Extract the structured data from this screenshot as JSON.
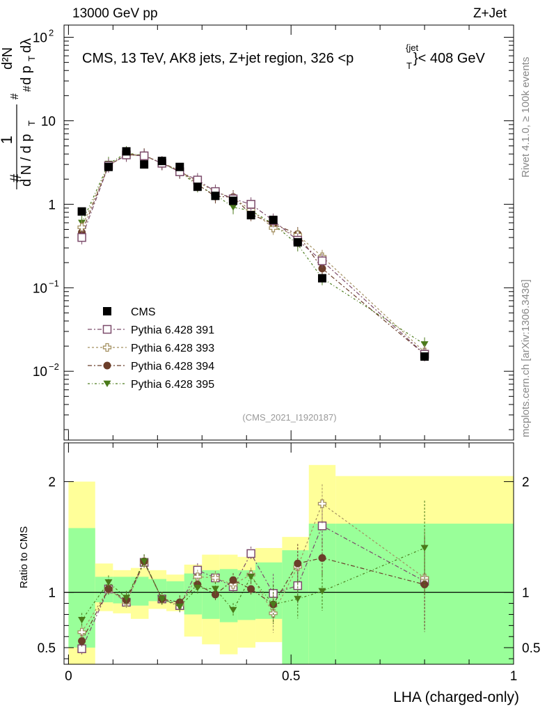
{
  "header": {
    "left": "13000 GeV pp",
    "right": "Z+Jet"
  },
  "side_labels": {
    "rivet": "Rivet 4.1.0, ≥ 100k events",
    "mcplots": "mcplots.cern.ch [arXiv:1306.3436]"
  },
  "title_parts": {
    "main": "CMS, 13 TeV, AK8 jets, Z+jet region, 326 <p",
    "sup": "{jet",
    "sub": "T",
    "tail": "}< 408 GeV"
  },
  "analysis_id": "(CMS_2021_I1920187)",
  "ylabel_top": {
    "hash_left": "#",
    "one": "1",
    "dn": "d N / d p",
    "t": "T",
    "hash_mid": "#",
    "dpt": "d p",
    "t2": "T",
    "dl": "dλ",
    "hash_right": "#",
    "d2n": "d²N"
  },
  "ylabel_bottom": "Ratio to CMS",
  "xlabel": "LHA (charged-only)",
  "colors": {
    "cms": "#000000",
    "p391": "#7b4a6a",
    "p393": "#a39060",
    "p394": "#6b3e2a",
    "p395": "#4a7a1a",
    "band_green": "#99ff99",
    "band_yellow": "#ffff99"
  },
  "chart_data": [
    {
      "type": "scatter",
      "yscale": "log",
      "ylim": [
        0.0015,
        140
      ],
      "xlim": [
        -0.01,
        1.0
      ],
      "yticks": [
        0.01,
        0.1,
        1,
        10,
        100
      ],
      "ytick_labels": [
        {
          "base": "10",
          "exp": "−2"
        },
        {
          "base": "10",
          "exp": "−1"
        },
        {
          "base": "1",
          "exp": ""
        },
        {
          "base": "10",
          "exp": ""
        },
        {
          "base": "10",
          "exp": "2"
        }
      ],
      "x": [
        0.03,
        0.09,
        0.13,
        0.17,
        0.21,
        0.25,
        0.29,
        0.33,
        0.37,
        0.41,
        0.46,
        0.515,
        0.57,
        0.8
      ],
      "series": [
        {
          "name": "CMS",
          "marker": "filled-square",
          "values": [
            0.82,
            2.8,
            4.3,
            3.0,
            3.3,
            2.8,
            1.62,
            1.26,
            1.1,
            0.74,
            0.65,
            0.35,
            0.13,
            0.015
          ]
        },
        {
          "name": "Pythia 6.428 391",
          "marker": "open-square",
          "values": [
            0.4,
            2.9,
            3.9,
            3.8,
            3.1,
            2.45,
            1.95,
            1.42,
            1.16,
            1.0,
            0.64,
            0.37,
            0.21,
            0.016
          ]
        },
        {
          "name": "Pythia 6.428 393",
          "marker": "open-cross",
          "values": [
            0.53,
            2.9,
            3.9,
            3.8,
            3.1,
            2.5,
            1.85,
            1.42,
            1.18,
            0.86,
            0.52,
            0.43,
            0.235,
            0.017
          ]
        },
        {
          "name": "Pythia 6.428 394",
          "marker": "filled-circle",
          "values": [
            0.46,
            2.9,
            4.0,
            3.85,
            3.1,
            2.55,
            1.73,
            1.24,
            1.22,
            0.76,
            0.58,
            0.44,
            0.17,
            0.016
          ]
        },
        {
          "name": "Pythia 6.428 395",
          "marker": "filled-triangle-down",
          "values": [
            0.6,
            3.05,
            4.1,
            3.85,
            3.1,
            2.45,
            1.68,
            1.3,
            0.92,
            0.84,
            0.58,
            0.33,
            0.13,
            0.021
          ]
        }
      ]
    },
    {
      "type": "scatter",
      "title": "Ratio to CMS",
      "xlabel": "LHA (charged-only)",
      "ylim": [
        0.35,
        2.35
      ],
      "xlim": [
        -0.01,
        1.0
      ],
      "yticks": [
        0.5,
        1,
        2
      ],
      "ytick_labels": [
        "0.5",
        "1",
        "2"
      ],
      "xticks": [
        0,
        0.5,
        1
      ],
      "xtick_labels": [
        "0",
        "0.5",
        "1"
      ],
      "bin_edges": [
        0,
        0.06,
        0.1,
        0.14,
        0.18,
        0.22,
        0.26,
        0.3,
        0.34,
        0.38,
        0.42,
        0.48,
        0.54,
        0.6,
        1.0
      ],
      "band_yellow": [
        [
          0.35,
          2.0
        ],
        [
          0.83,
          1.26
        ],
        [
          0.81,
          1.2
        ],
        [
          0.76,
          1.22
        ],
        [
          0.85,
          1.2
        ],
        [
          0.83,
          1.16
        ],
        [
          0.6,
          1.25
        ],
        [
          0.53,
          1.34
        ],
        [
          0.44,
          1.34
        ],
        [
          0.5,
          1.32
        ],
        [
          0.55,
          1.4
        ],
        [
          0.35,
          1.5
        ],
        [
          0.35,
          2.15
        ],
        [
          0.45,
          2.05
        ]
      ],
      "band_green": [
        [
          0.5,
          1.58
        ],
        [
          0.91,
          1.14
        ],
        [
          0.9,
          1.14
        ],
        [
          0.88,
          1.14
        ],
        [
          0.92,
          1.12
        ],
        [
          0.91,
          1.1
        ],
        [
          0.8,
          1.17
        ],
        [
          0.76,
          1.2
        ],
        [
          0.73,
          1.21
        ],
        [
          0.75,
          1.2
        ],
        [
          0.76,
          1.27
        ],
        [
          0.35,
          1.38
        ],
        [
          0.35,
          1.62
        ],
        [
          0.35,
          1.62
        ]
      ],
      "x": [
        0.03,
        0.09,
        0.13,
        0.17,
        0.21,
        0.25,
        0.29,
        0.33,
        0.37,
        0.41,
        0.46,
        0.515,
        0.57,
        0.8
      ],
      "series": [
        {
          "name": "Pythia 6.428 391",
          "values": [
            0.49,
            1.03,
            0.91,
            1.27,
            0.94,
            0.88,
            1.2,
            1.13,
            1.05,
            1.35,
            0.99,
            1.06,
            1.6,
            1.1
          ]
        },
        {
          "name": "Pythia 6.428 393",
          "values": [
            0.64,
            1.03,
            0.91,
            1.27,
            0.94,
            0.89,
            1.14,
            1.13,
            1.07,
            1.16,
            0.81,
            1.23,
            1.8,
            1.13
          ]
        },
        {
          "name": "Pythia 6.428 394",
          "values": [
            0.56,
            1.03,
            0.93,
            1.28,
            0.94,
            0.91,
            1.07,
            0.98,
            1.11,
            1.03,
            0.89,
            1.26,
            1.31,
            1.07
          ]
        },
        {
          "name": "Pythia 6.428 395",
          "values": [
            0.75,
            1.09,
            0.95,
            1.28,
            0.94,
            0.87,
            1.04,
            1.03,
            0.84,
            1.14,
            0.89,
            0.94,
            1.01,
            1.4
          ]
        }
      ]
    }
  ]
}
